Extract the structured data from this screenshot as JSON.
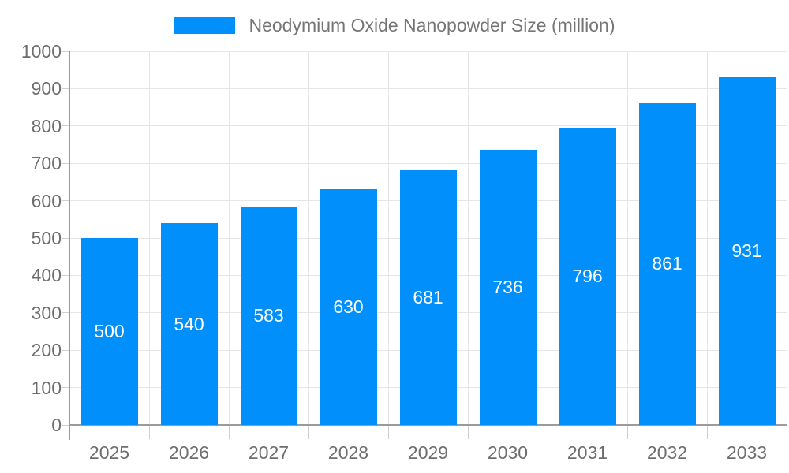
{
  "legend": {
    "label": "Neodymium Oxide Nanopowder Size (million)"
  },
  "colors": {
    "bar": "#008FFB",
    "bar_label": "#FFFFFF",
    "grid": "#E6E6E6",
    "axis": "#9B9B9B",
    "tick": "#CFCFCF",
    "axis_text": "#6E6E6E",
    "legend_text": "#757575",
    "background": "#FFFFFF"
  },
  "chart_data": {
    "type": "bar",
    "title": "Neodymium Oxide Nanopowder Size (million)",
    "categories": [
      "2025",
      "2026",
      "2027",
      "2028",
      "2029",
      "2030",
      "2031",
      "2032",
      "2033"
    ],
    "values": [
      500,
      540,
      583,
      630,
      681,
      736,
      796,
      861,
      931
    ],
    "xlabel": "",
    "ylabel": "",
    "ylim": [
      0,
      1000
    ],
    "ytick_step": 100,
    "ytick_labels": [
      "0",
      "100",
      "200",
      "300",
      "400",
      "500",
      "600",
      "700",
      "800",
      "900",
      "1000"
    ],
    "grid": true,
    "legend_position": "top",
    "value_label_position": "inside-center"
  }
}
